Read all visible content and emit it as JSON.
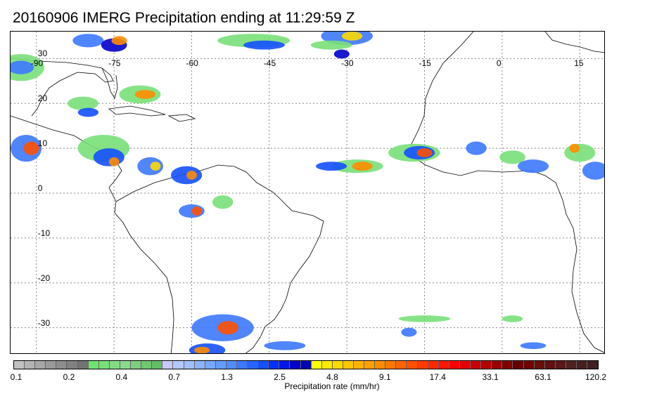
{
  "title": "20160906 IMERG Precipitation ending at 11:29:59 Z",
  "map": {
    "lon_range": [
      -95,
      20
    ],
    "lat_range": [
      -36,
      36
    ],
    "grid": true,
    "lon_ticks": [
      "-90",
      "-75",
      "-60",
      "-45",
      "-30",
      "-15",
      "0",
      "15"
    ],
    "lat_ticks": [
      "30",
      "20",
      "10",
      "0",
      "-10",
      "-20",
      "-30"
    ]
  },
  "colorbar": {
    "label": "Precipitation rate (mm/hr)",
    "tick_labels": [
      "0.1",
      "0.2",
      "0.4",
      "0.7",
      "1.3",
      "2.5",
      "4.8",
      "9.1",
      "17.4",
      "33.1",
      "63.1",
      "120.2"
    ],
    "colors": [
      "#c0c0c0",
      "#b3b3b3",
      "#a6a6a6",
      "#9a9a9a",
      "#8d8d8d",
      "#818181",
      "#747474",
      "#6ee36e",
      "#78e078",
      "#82dc82",
      "#8cd88c",
      "#7fcf7f",
      "#72c672",
      "#65bd65",
      "#c8c8ff",
      "#b4c8ff",
      "#a0c0ff",
      "#8cb4ff",
      "#78a8ff",
      "#649cff",
      "#508cff",
      "#3c78ff",
      "#2864ff",
      "#1450ff",
      "#0032ff",
      "#0019e6",
      "#0000cc",
      "#0000b3",
      "#ffff00",
      "#ffec00",
      "#ffd900",
      "#ffc600",
      "#ffb300",
      "#ffa000",
      "#ff8c00",
      "#ff7800",
      "#ff6400",
      "#ff5000",
      "#ff3c00",
      "#ff2800",
      "#ff1400",
      "#ff0000",
      "#e60000",
      "#cc0000",
      "#b30000",
      "#990000",
      "#800000",
      "#660000",
      "#700000",
      "#681008",
      "#601010",
      "#581818",
      "#502020",
      "#482020",
      "#402020"
    ]
  }
}
